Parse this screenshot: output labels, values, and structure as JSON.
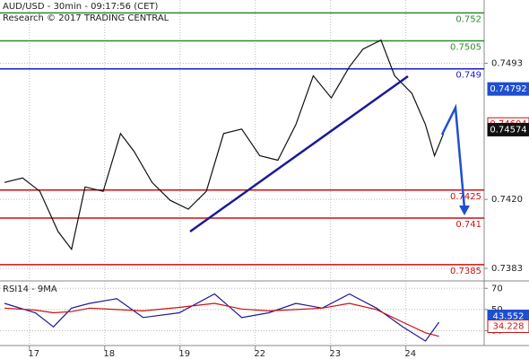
{
  "chart_data": [
    {
      "type": "line",
      "title": "AUD/USD - 30min - 09:17:56 (CET)",
      "subtitle": "Research © 2017 TRADING CENTRAL",
      "x": [
        -0.39,
        -0.15,
        0.08,
        0.32,
        0.5,
        0.68,
        0.92,
        1.15,
        1.33,
        1.57,
        1.81,
        2.05,
        2.29,
        2.52,
        2.76,
        3.0,
        3.24,
        3.48,
        3.71,
        3.95,
        4.19,
        4.37,
        4.61,
        4.79,
        5.02,
        5.2,
        5.32,
        5.44
      ],
      "series": [
        {
          "color": "#111111",
          "values": [
            0.74291,
            0.74315,
            0.74243,
            0.74028,
            0.73933,
            0.74267,
            0.74243,
            0.74553,
            0.74458,
            0.74291,
            0.74195,
            0.74148,
            0.74243,
            0.74553,
            0.74577,
            0.74434,
            0.7441,
            0.74601,
            0.74863,
            0.74744,
            0.74911,
            0.75006,
            0.75054,
            0.74863,
            0.74768,
            0.74601,
            0.74434,
            0.74553
          ]
        }
      ],
      "levels": [
        {
          "value": 0.752,
          "color": "#2e8b2e"
        },
        {
          "value": 0.7505,
          "color": "#2e8b2e"
        },
        {
          "value": 0.749,
          "color": "#1a1acc"
        },
        {
          "value": 0.7425,
          "color": "#cc1111"
        },
        {
          "value": 0.741,
          "color": "#cc1111"
        },
        {
          "value": 0.7385,
          "color": "#cc1111"
        }
      ],
      "price_labels": [
        {
          "value": 0.74792,
          "color": "#1f4fd0",
          "filled": true
        },
        {
          "value": 0.74604,
          "color": "#cc1111",
          "filled": false
        },
        {
          "value": 0.74574,
          "color": "#111111",
          "filled": true
        }
      ],
      "xlim": [
        -0.45,
        5.98
      ],
      "xticks": [
        {
          "value": 0,
          "label": "17"
        },
        {
          "value": 1,
          "label": "18"
        },
        {
          "value": 2,
          "label": "19"
        },
        {
          "value": 3,
          "label": "22"
        },
        {
          "value": 4,
          "label": "23"
        },
        {
          "value": 5,
          "label": "24"
        }
      ],
      "ylim": [
        0.73763,
        0.75269
      ],
      "yticks": [
        0.7493,
        {
          "value": 0.742,
          "label": "0.7420"
        },
        0.7383
      ],
      "grid": true
    },
    {
      "type": "line",
      "title": "RSI14 - 9MA",
      "x": [
        -0.39,
        0.02,
        0.26,
        0.5,
        0.74,
        1.1,
        1.45,
        1.93,
        2.4,
        2.76,
        3.12,
        3.48,
        3.83,
        4.19,
        4.55,
        4.9,
        5.2,
        5.38
      ],
      "series": [
        {
          "color": "#1a1a99",
          "values": [
            55.8,
            46.9,
            33.6,
            51.3,
            55.8,
            60.2,
            42.4,
            46.9,
            64.7,
            42.4,
            46.9,
            55.8,
            51.3,
            64.7,
            51.3,
            33.6,
            20.2,
            38.0
          ]
        },
        {
          "color": "#cc1111",
          "values": [
            51.3,
            49.5,
            46.9,
            48.0,
            51.3,
            50.0,
            48.7,
            52.0,
            55.8,
            50.5,
            48.7,
            50.0,
            51.3,
            55.8,
            50.0,
            38.0,
            28.0,
            24.7
          ]
        }
      ],
      "value_labels": [
        {
          "value": 43.552,
          "color": "#1f4fd0",
          "filled": true
        },
        {
          "value": 34.228,
          "color": "#cc1111",
          "filled": false
        }
      ],
      "xlim": [
        -0.45,
        5.98
      ],
      "ylim": [
        16,
        77
      ],
      "yticks": [
        30,
        50,
        70
      ],
      "grid": true
    }
  ]
}
